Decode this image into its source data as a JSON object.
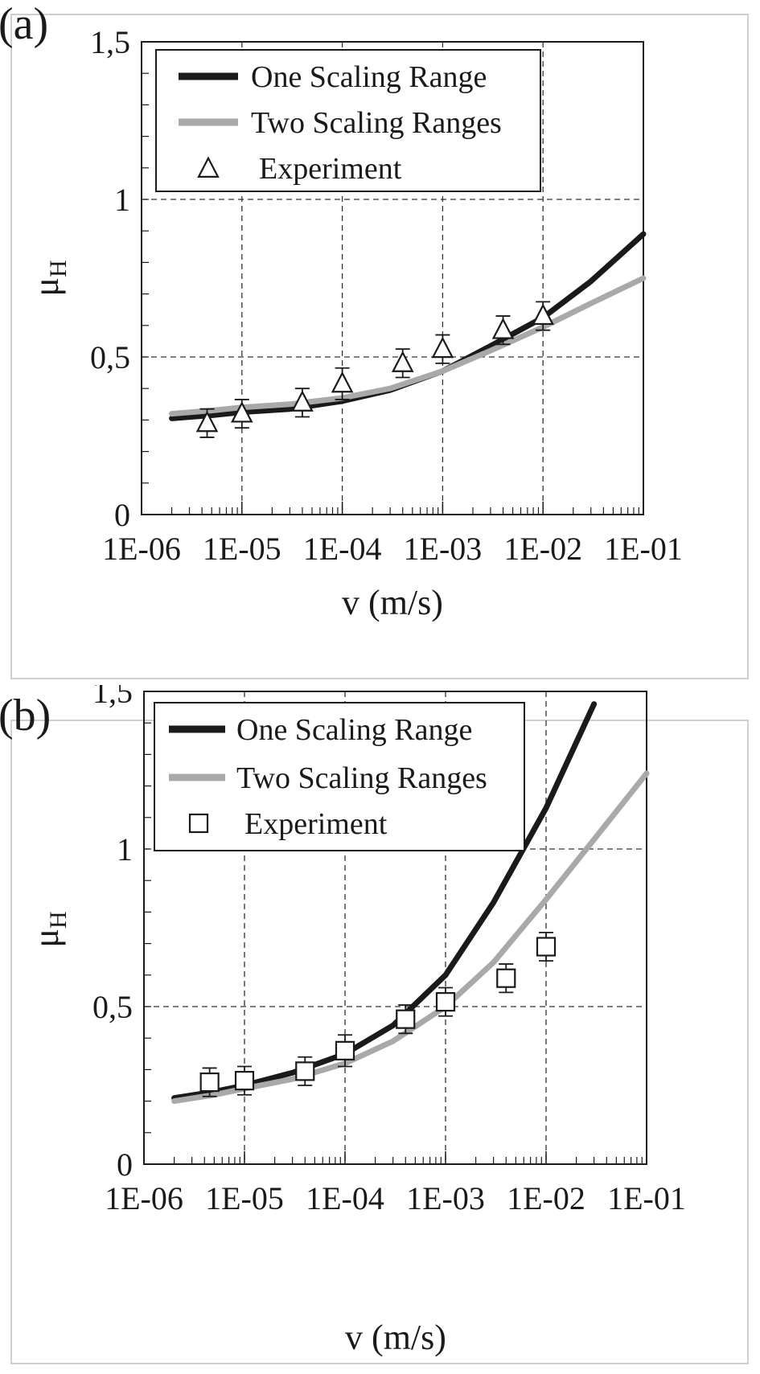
{
  "chart_data": [
    {
      "type": "line",
      "panel_label": "(a)",
      "xlabel": "v (m/s)",
      "ylabel": "μ",
      "ylabel_sub": "H",
      "xscale": "log",
      "xlim": [
        1e-06,
        0.1
      ],
      "ylim": [
        0,
        1.5
      ],
      "grid": true,
      "legend_position": "top-left",
      "x_ticks": [
        1e-06,
        1e-05,
        0.0001,
        0.001,
        0.01,
        0.1
      ],
      "x_tick_labels": [
        "1E-06",
        "1E-05",
        "1E-04",
        "1E-03",
        "1E-02",
        "1E-01"
      ],
      "y_ticks": [
        0,
        0.5,
        1,
        1.5
      ],
      "y_tick_labels": [
        "0",
        "0,5",
        "1",
        "1,5"
      ],
      "legend": {
        "one": "One Scaling Range",
        "two": "Two Scaling Ranges",
        "exp": "Experiment"
      },
      "series": [
        {
          "name": "One Scaling Range",
          "color": "#1a1a1a",
          "x": [
            2e-06,
            5e-06,
            1e-05,
            3e-05,
            0.0001,
            0.0003,
            0.001,
            0.003,
            0.01,
            0.03,
            0.1
          ],
          "y": [
            0.305,
            0.315,
            0.325,
            0.335,
            0.36,
            0.395,
            0.455,
            0.535,
            0.625,
            0.74,
            0.89
          ]
        },
        {
          "name": "Two Scaling Ranges",
          "color": "#a9a9a9",
          "x": [
            2e-06,
            5e-06,
            1e-05,
            3e-05,
            0.0001,
            0.0003,
            0.001,
            0.003,
            0.01,
            0.03,
            0.1
          ],
          "y": [
            0.32,
            0.33,
            0.34,
            0.35,
            0.37,
            0.4,
            0.455,
            0.52,
            0.595,
            0.67,
            0.75
          ]
        },
        {
          "name": "Experiment",
          "marker": "triangle",
          "color": "#1a1a1a",
          "x": [
            4.5e-06,
            1e-05,
            4e-05,
            0.0001,
            0.0004,
            0.001,
            0.004,
            0.01
          ],
          "y": [
            0.29,
            0.32,
            0.355,
            0.415,
            0.48,
            0.525,
            0.585,
            0.63
          ],
          "err": [
            0.045,
            0.045,
            0.045,
            0.05,
            0.045,
            0.045,
            0.045,
            0.045
          ]
        }
      ]
    },
    {
      "type": "line",
      "panel_label": "(b)",
      "xlabel": "v (m/s)",
      "ylabel": "μ",
      "ylabel_sub": "H",
      "xscale": "log",
      "xlim": [
        1e-06,
        0.1
      ],
      "ylim": [
        0,
        1.5
      ],
      "grid": true,
      "legend_position": "top-left",
      "x_ticks": [
        1e-06,
        1e-05,
        0.0001,
        0.001,
        0.01,
        0.1
      ],
      "x_tick_labels": [
        "1E-06",
        "1E-05",
        "1E-04",
        "1E-03",
        "1E-02",
        "1E-01"
      ],
      "y_ticks": [
        0,
        0.5,
        1,
        1.5
      ],
      "y_tick_labels": [
        "0",
        "0,5",
        "1",
        "1,5"
      ],
      "legend": {
        "one": "One Scaling Range",
        "two": "Two Scaling Ranges",
        "exp": "Experiment"
      },
      "series": [
        {
          "name": "One Scaling Range",
          "color": "#1a1a1a",
          "x": [
            2e-06,
            5e-06,
            1e-05,
            3e-05,
            0.0001,
            0.0003,
            0.001,
            0.003,
            0.01,
            0.03
          ],
          "y": [
            0.21,
            0.23,
            0.25,
            0.29,
            0.35,
            0.44,
            0.6,
            0.83,
            1.13,
            1.46
          ]
        },
        {
          "name": "Two Scaling Ranges",
          "color": "#a9a9a9",
          "x": [
            2e-06,
            5e-06,
            1e-05,
            3e-05,
            0.0001,
            0.0003,
            0.001,
            0.003,
            0.01,
            0.03,
            0.1
          ],
          "y": [
            0.2,
            0.22,
            0.24,
            0.27,
            0.32,
            0.39,
            0.5,
            0.64,
            0.84,
            1.03,
            1.24
          ]
        },
        {
          "name": "Experiment",
          "marker": "square",
          "color": "#1a1a1a",
          "x": [
            4.5e-06,
            1e-05,
            4e-05,
            0.0001,
            0.0004,
            0.001,
            0.004,
            0.01
          ],
          "y": [
            0.26,
            0.265,
            0.295,
            0.36,
            0.46,
            0.515,
            0.59,
            0.69
          ],
          "err": [
            0.045,
            0.045,
            0.045,
            0.05,
            0.045,
            0.045,
            0.045,
            0.045
          ]
        }
      ]
    }
  ]
}
